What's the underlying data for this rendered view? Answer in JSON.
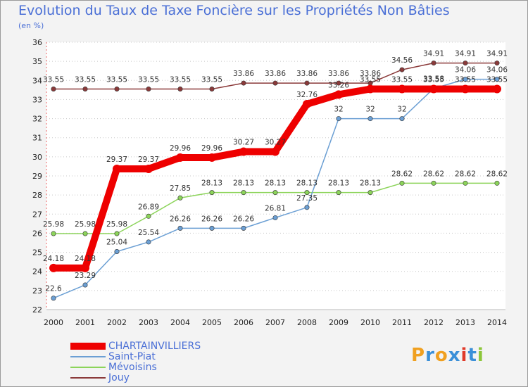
{
  "chart_data": {
    "type": "line",
    "title": "Evolution du Taux de Taxe Foncière sur les Propriétés Non Bâties",
    "ylabel": "(en %)",
    "xlabel": "",
    "ylim": [
      22,
      36
    ],
    "yticks": [
      "22",
      "23",
      "24",
      "25",
      "26",
      "27",
      "28",
      "29",
      "30",
      "31",
      "32",
      "33",
      "34",
      "35",
      "36"
    ],
    "categories": [
      "2000",
      "2001",
      "2002",
      "2003",
      "2004",
      "2005",
      "2006",
      "2007",
      "2008",
      "2009",
      "2010",
      "2011",
      "2012",
      "2013",
      "2014"
    ],
    "series": [
      {
        "name": "CHARTAINVILLIERS",
        "color": "#ee0000",
        "width": 10,
        "values": [
          24.18,
          24.18,
          29.37,
          29.37,
          29.96,
          29.96,
          30.27,
          30.27,
          32.76,
          33.26,
          33.55,
          33.55,
          33.55,
          33.55,
          33.55
        ],
        "labels": [
          "24.18",
          "24.18",
          "29.37",
          "29.37",
          "29.96",
          "29.96",
          "30.27",
          "30.27",
          "32.76",
          "33.26",
          "33.55",
          "33.55",
          "33.55",
          "33.55",
          "33.55"
        ]
      },
      {
        "name": "Saint-Piat",
        "color": "#6b9fd4",
        "width": 1.5,
        "values": [
          22.6,
          23.29,
          25.04,
          25.54,
          26.26,
          26.26,
          26.26,
          26.81,
          27.35,
          32,
          32,
          32,
          33.58,
          34.06,
          34.06
        ],
        "labels": [
          "22.6",
          "23.29",
          "25.04",
          "25.54",
          "26.26",
          "26.26",
          "26.26",
          "26.81",
          "27.35",
          "32",
          "32",
          "32",
          "33.58",
          "34.06",
          "34.06"
        ]
      },
      {
        "name": "Mévoisins",
        "color": "#8cd45a",
        "width": 1.5,
        "values": [
          25.98,
          25.98,
          25.98,
          26.89,
          27.85,
          28.13,
          28.13,
          28.13,
          28.13,
          28.13,
          28.13,
          28.62,
          28.62,
          28.62,
          28.62
        ],
        "labels": [
          "25.98",
          "25.98",
          "25.98",
          "26.89",
          "27.85",
          "28.13",
          "28.13",
          "28.13",
          "28.13",
          "28.13",
          "28.13",
          "28.62",
          "28.62",
          "28.62",
          "28.62"
        ]
      },
      {
        "name": "Jouy",
        "color": "#8b3a3a",
        "width": 1.5,
        "values": [
          33.55,
          33.55,
          33.55,
          33.55,
          33.55,
          33.55,
          33.86,
          33.86,
          33.86,
          33.86,
          33.86,
          34.56,
          34.91,
          34.91,
          34.91
        ],
        "labels": [
          "33.55",
          "33.55",
          "33.55",
          "33.55",
          "33.55",
          "33.55",
          "33.86",
          "33.86",
          "33.86",
          "33.86",
          "33.86",
          "34.56",
          "34.91",
          "34.91",
          "34.91"
        ]
      }
    ],
    "grid": "horizontal dotted",
    "legend": "bottom-left"
  },
  "logo": {
    "text": "Proxiti",
    "letters": [
      "P",
      "r",
      "o",
      "x",
      "i",
      "t",
      "i"
    ],
    "colors": [
      "#f0a020",
      "#3a8fd8",
      "#f0a020",
      "#3a8fd8",
      "#e03a2a",
      "#3a8fd8",
      "#8cc63a"
    ]
  }
}
